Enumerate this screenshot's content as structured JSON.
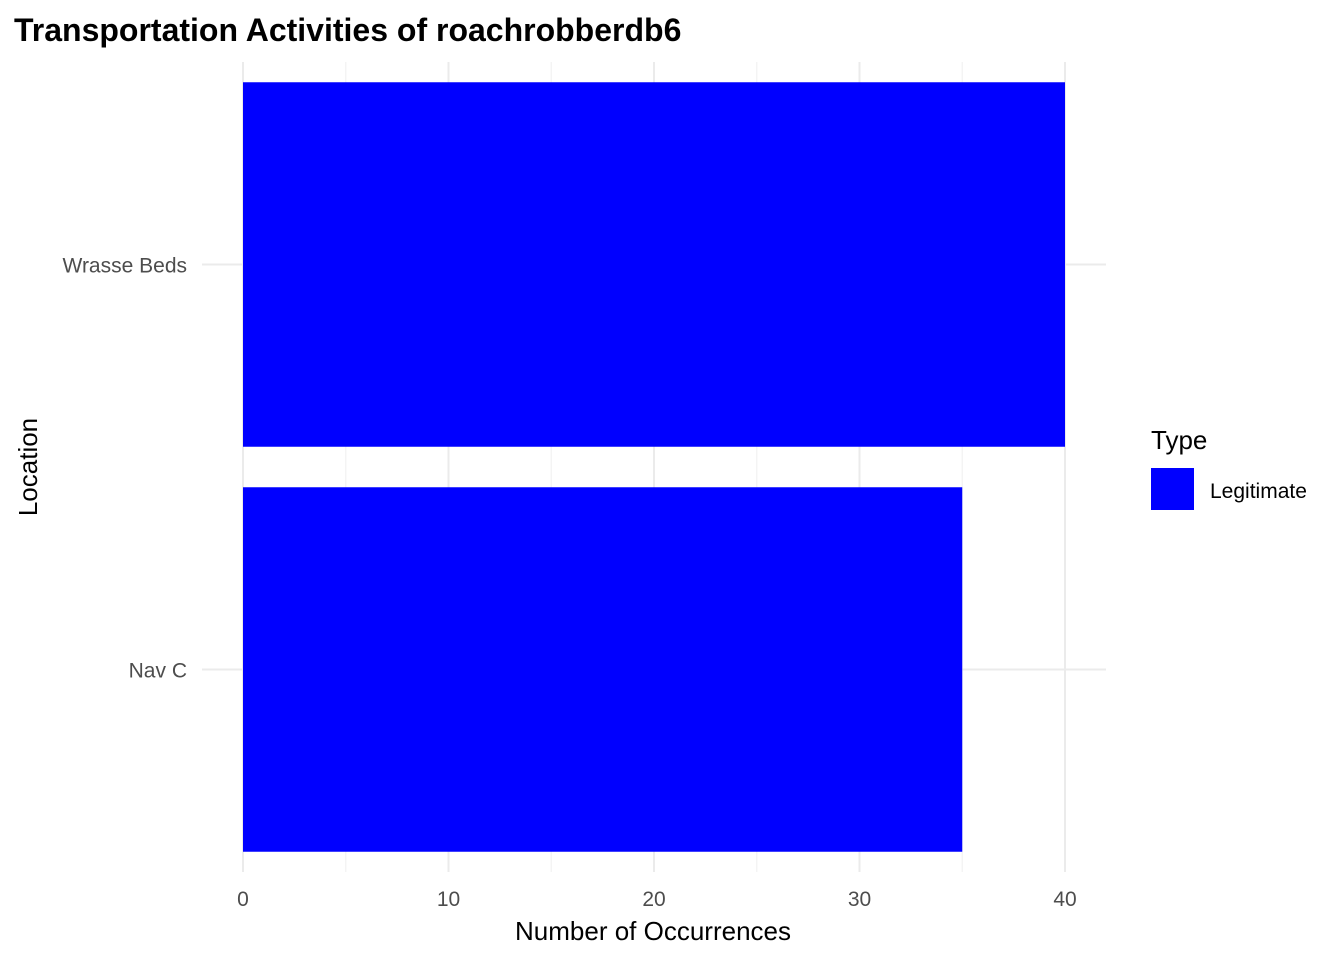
{
  "chart_data": {
    "type": "bar",
    "orientation": "horizontal",
    "title": "Transportation Activities of roachrobberdb6",
    "xlabel": "Number of Occurrences",
    "ylabel": "Location",
    "categories": [
      "Nav C",
      "Wrasse Beds"
    ],
    "series": [
      {
        "name": "Legitimate",
        "values": [
          35,
          40
        ],
        "color": "#0000ff"
      }
    ],
    "xlim": [
      0,
      42
    ],
    "x_ticks": [
      0,
      10,
      20,
      30,
      40
    ],
    "grid": true,
    "legend": {
      "title": "Type",
      "placement": "right"
    }
  }
}
